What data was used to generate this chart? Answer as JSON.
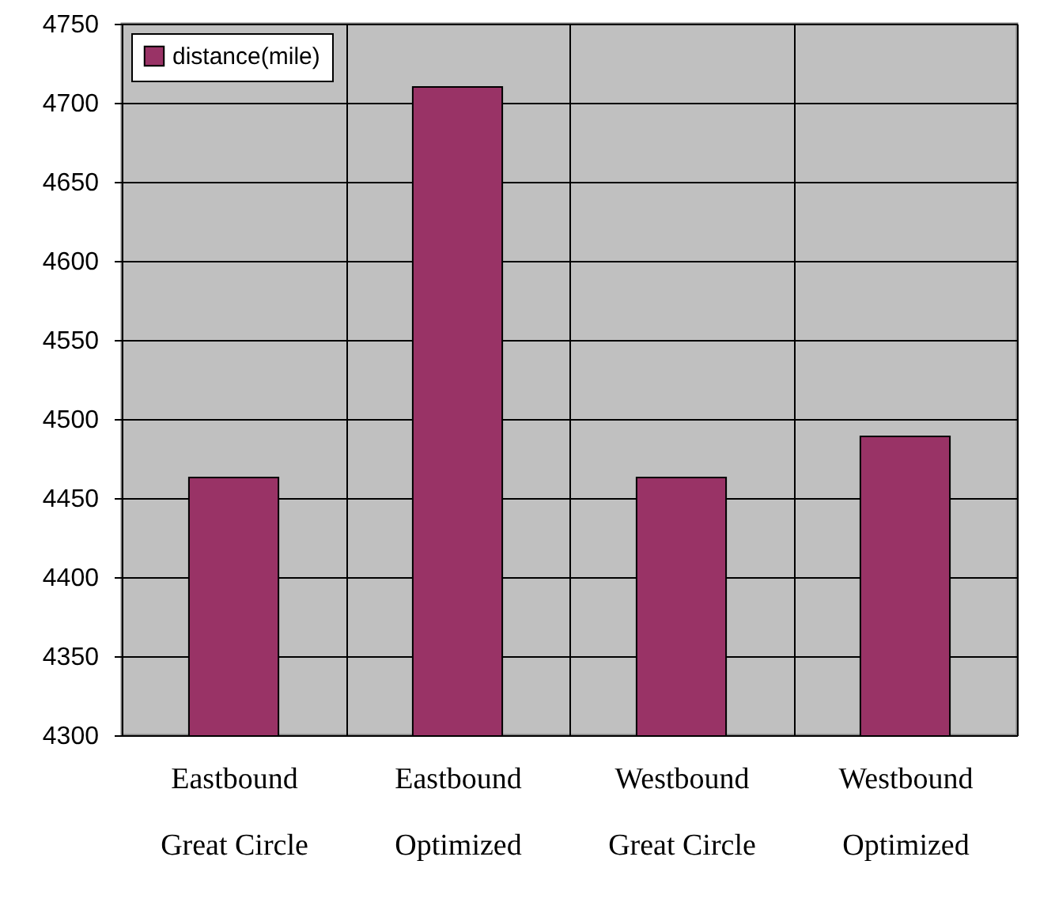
{
  "chart_data": {
    "type": "bar",
    "categories": [
      "Eastbound\nGreat Circle",
      "Eastbound\nOptimized",
      "Westbound\nGreat Circle",
      "Westbound\nOptimized"
    ],
    "series": [
      {
        "name": "distance(mile)",
        "color": "#993366",
        "values": [
          4463,
          4710,
          4463,
          4489
        ]
      }
    ],
    "ylim": [
      4300,
      4750
    ],
    "yticks": [
      4300,
      4350,
      4400,
      4450,
      4500,
      4550,
      4600,
      4650,
      4700,
      4750
    ],
    "grid": true,
    "legend": "top left"
  }
}
